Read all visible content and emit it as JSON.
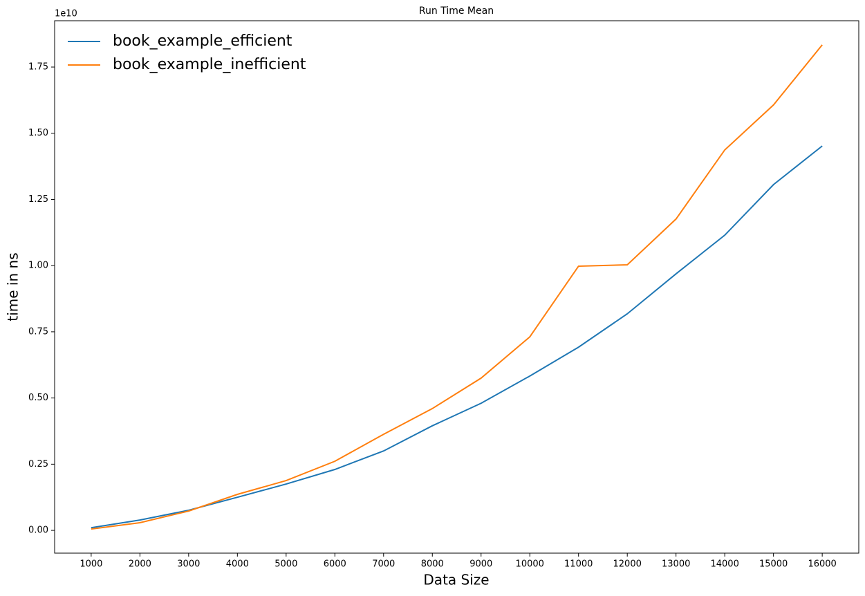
{
  "chart_data": {
    "type": "line",
    "title": "Run Time Mean",
    "x_label": "Data Size",
    "y_label": "time in ns",
    "offset_label": "1e10",
    "x": [
      1000,
      2000,
      3000,
      4000,
      5000,
      6000,
      7000,
      8000,
      9000,
      10000,
      11000,
      12000,
      13000,
      14000,
      15000,
      16000
    ],
    "series": [
      {
        "name": "book_example_efficient",
        "color": "#1f77b4",
        "values": [
          0.01,
          0.039,
          0.076,
          0.125,
          0.175,
          0.23,
          0.3,
          0.395,
          0.48,
          0.583,
          0.692,
          0.818,
          0.969,
          1.115,
          1.306,
          1.452
        ]
      },
      {
        "name": "book_example_inefficient",
        "color": "#ff7f0e",
        "values": [
          0.005,
          0.029,
          0.073,
          0.136,
          0.188,
          0.261,
          0.363,
          0.46,
          0.575,
          0.731,
          0.998,
          1.003,
          1.176,
          1.437,
          1.607,
          1.834
        ]
      }
    ],
    "xlim": [
      250,
      16750
    ],
    "ylim": [
      -0.086,
      1.925
    ],
    "xticks": [
      1000,
      2000,
      3000,
      4000,
      5000,
      6000,
      7000,
      8000,
      9000,
      10000,
      11000,
      12000,
      13000,
      14000,
      15000,
      16000
    ],
    "yticks": [
      {
        "value": 0,
        "label": "0.00"
      },
      {
        "value": 0.25,
        "label": "0.25"
      },
      {
        "value": 0.5,
        "label": "0.50"
      },
      {
        "value": 0.75,
        "label": "0.75"
      },
      {
        "value": 1,
        "label": "1.00"
      },
      {
        "value": 1.25,
        "label": "1.25"
      },
      {
        "value": 1.5,
        "label": "1.50"
      },
      {
        "value": 1.75,
        "label": "1.75"
      }
    ],
    "grid": false,
    "legend": "upper-left"
  }
}
